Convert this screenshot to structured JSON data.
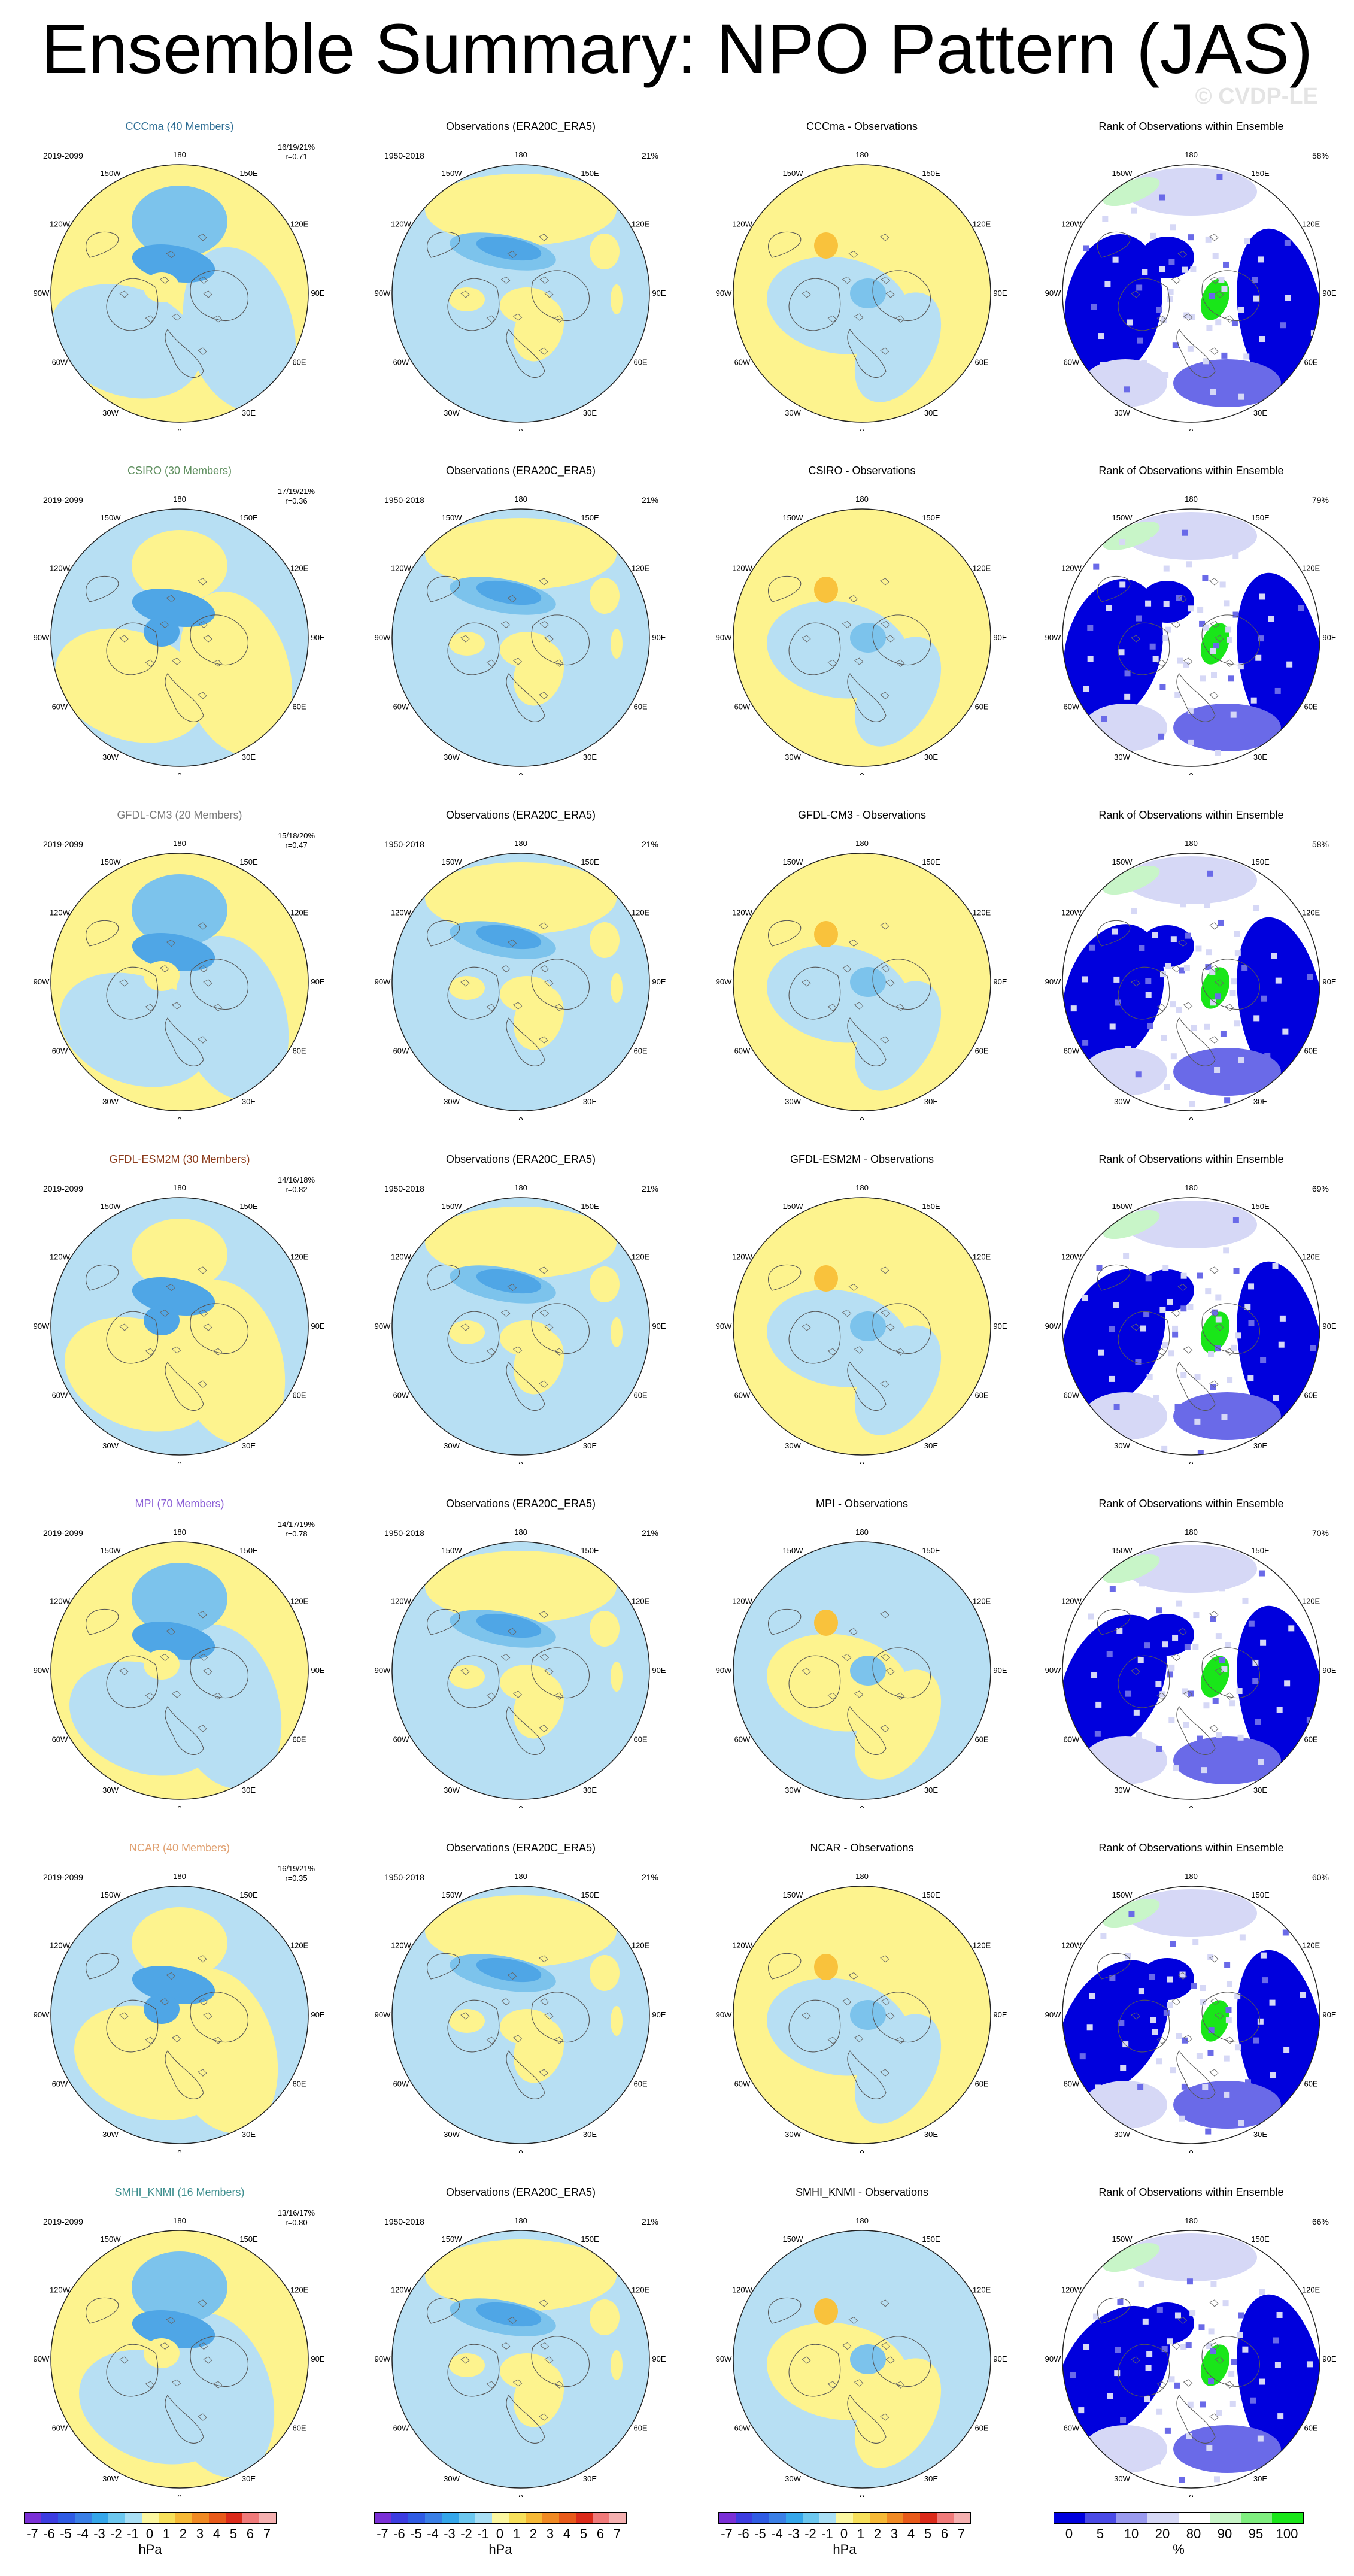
{
  "title": "Ensemble Summary: NPO Pattern (JAS)",
  "watermark": "© CVDP-LE",
  "lon_labels": [
    "180",
    "150E",
    "120E",
    "90E",
    "60E",
    "30E",
    "0",
    "30W",
    "60W",
    "90W",
    "120W",
    "150W"
  ],
  "colors": {
    "neg_light": "#b7dff3",
    "neg_mid": "#7cc3ec",
    "neg_dark": "#4fa6e6",
    "neg_deep": "#1e8fe0",
    "pos_light": "#fdf38e",
    "pos_mid": "#f9c23c",
    "rank_blue": "#0000dd",
    "rank_mid": "#6a6ae8",
    "rank_light": "#d6d8f6",
    "rank_green": "#19e619",
    "rank_lightgreen": "#c8f5c8"
  },
  "rows": [
    {
      "model": "CCCma (40 Members)",
      "model_color": "#2f6f95",
      "period": "2019-2099",
      "stats1": "16/19/21%",
      "stats2": "r=0.71",
      "obs_title": "Observations (ERA20C_ERA5)",
      "obs_period": "1950-2018",
      "obs_pct": "21%",
      "diff_title": "CCCma - Observations",
      "rank_title": "Rank of Observations within Ensemble",
      "rank_pct": "58%"
    },
    {
      "model": "CSIRO (30 Members)",
      "model_color": "#5f8f5f",
      "period": "2019-2099",
      "stats1": "17/19/21%",
      "stats2": "r=0.36",
      "obs_title": "Observations (ERA20C_ERA5)",
      "obs_period": "1950-2018",
      "obs_pct": "21%",
      "diff_title": "CSIRO - Observations",
      "rank_title": "Rank of Observations within Ensemble",
      "rank_pct": "79%"
    },
    {
      "model": "GFDL-CM3 (20 Members)",
      "model_color": "#7a7a7a",
      "period": "2019-2099",
      "stats1": "15/18/20%",
      "stats2": "r=0.47",
      "obs_title": "Observations (ERA20C_ERA5)",
      "obs_period": "1950-2018",
      "obs_pct": "21%",
      "diff_title": "GFDL-CM3 - Observations",
      "rank_title": "Rank of Observations within Ensemble",
      "rank_pct": "58%"
    },
    {
      "model": "GFDL-ESM2M (30 Members)",
      "model_color": "#8b3a1a",
      "period": "2019-2099",
      "stats1": "14/16/18%",
      "stats2": "r=0.82",
      "obs_title": "Observations (ERA20C_ERA5)",
      "obs_period": "1950-2018",
      "obs_pct": "21%",
      "diff_title": "GFDL-ESM2M - Observations",
      "rank_title": "Rank of Observations within Ensemble",
      "rank_pct": "69%"
    },
    {
      "model": "MPI (70 Members)",
      "model_color": "#8b5fd6",
      "period": "2019-2099",
      "stats1": "14/17/19%",
      "stats2": "r=0.78",
      "obs_title": "Observations (ERA20C_ERA5)",
      "obs_period": "1950-2018",
      "obs_pct": "21%",
      "diff_title": "MPI - Observations",
      "rank_title": "Rank of Observations within Ensemble",
      "rank_pct": "70%"
    },
    {
      "model": "NCAR (40 Members)",
      "model_color": "#e0a070",
      "period": "2019-2099",
      "stats1": "16/19/21%",
      "stats2": "r=0.35",
      "obs_title": "Observations (ERA20C_ERA5)",
      "obs_period": "1950-2018",
      "obs_pct": "21%",
      "diff_title": "NCAR - Observations",
      "rank_title": "Rank of Observations within Ensemble",
      "rank_pct": "60%"
    },
    {
      "model": "SMHI_KNMI (16 Members)",
      "model_color": "#3f8f8f",
      "period": "2019-2099",
      "stats1": "13/16/17%",
      "stats2": "r=0.80",
      "obs_title": "Observations (ERA20C_ERA5)",
      "obs_period": "1950-2018",
      "obs_pct": "21%",
      "diff_title": "SMHI_KNMI - Observations",
      "rank_title": "Rank of Observations within Ensemble",
      "rank_pct": "66%"
    }
  ],
  "colorbar_hpa": {
    "labels": [
      "-7",
      "-6",
      "-5",
      "-4",
      "-3",
      "-2",
      "-1",
      "0",
      "1",
      "2",
      "3",
      "4",
      "5",
      "6",
      "7"
    ],
    "colors": [
      "#7a2fd6",
      "#3c3ce0",
      "#2f5be3",
      "#3a7fe6",
      "#35a6ea",
      "#6cc7ef",
      "#a9dff5",
      "#fbf7a0",
      "#f7e05a",
      "#f6b936",
      "#f08a24",
      "#e85a1a",
      "#db2a1a",
      "#f07a7a",
      "#f5b0b0"
    ],
    "unit": "hPa"
  },
  "colorbar_rank": {
    "labels": [
      "0",
      "5",
      "10",
      "20",
      "80",
      "90",
      "95",
      "100"
    ],
    "colors": [
      "#0000dd",
      "#4a4ae6",
      "#9a9aef",
      "#d6d8f6",
      "#ffffff",
      "#c8f5c8",
      "#7fee7f",
      "#19e619"
    ],
    "unit": "%"
  }
}
